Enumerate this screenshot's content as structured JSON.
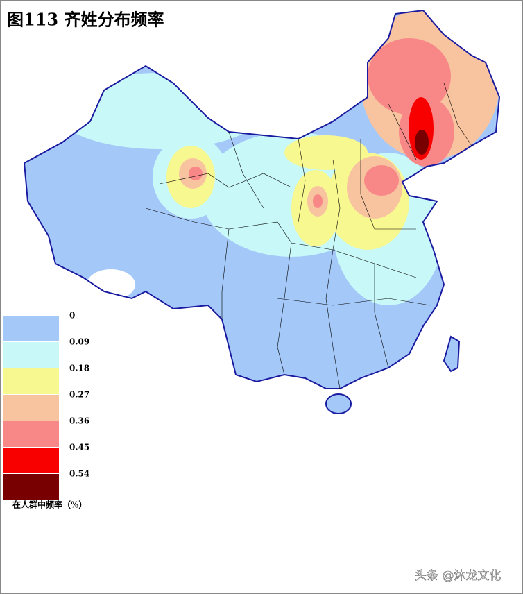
{
  "title": "图113  齐姓分布频率",
  "legend": {
    "items": [
      {
        "value": 0,
        "color": "#a4c8f8"
      },
      {
        "value": 0.09,
        "color": "#c8f8f8"
      },
      {
        "value": 0.18,
        "color": "#f8f890"
      },
      {
        "value": 0.27,
        "color": "#f8c4a0"
      },
      {
        "value": 0.36,
        "color": "#f88888"
      },
      {
        "value": 0.45,
        "color": "#f80000"
      },
      {
        "value": 0.54,
        "color": "#780000"
      }
    ],
    "caption": "在人群中频率（%）"
  },
  "watermark": "头条 @沐龙文化"
}
